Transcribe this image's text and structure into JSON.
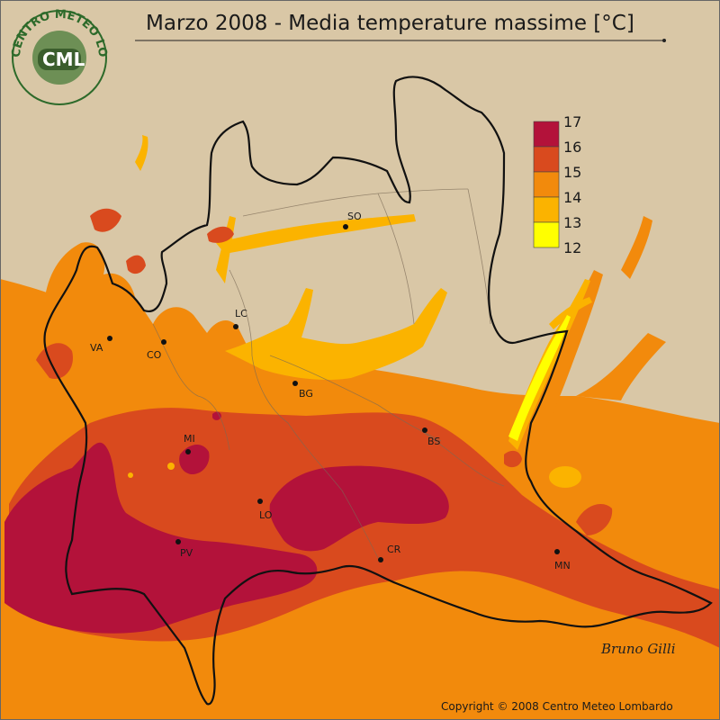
{
  "title": "Marzo 2008 - Media temperature massime [°C]",
  "logo": {
    "ring_text": "CENTRO METEO LOMBARDO",
    "short": "CML"
  },
  "legend": [
    {
      "label": "17",
      "color": "#b3123a"
    },
    {
      "label": "16",
      "color": "#d94a1e"
    },
    {
      "label": "15",
      "color": "#f28a0c"
    },
    {
      "label": "14",
      "color": "#fbb300"
    },
    {
      "label": "13",
      "color": "#ffff00"
    },
    {
      "label": "12",
      "color": ""
    }
  ],
  "cities": [
    {
      "id": "so",
      "label": "SO"
    },
    {
      "id": "lc",
      "label": "LC"
    },
    {
      "id": "va",
      "label": "VA"
    },
    {
      "id": "co",
      "label": "CO"
    },
    {
      "id": "bg",
      "label": "BG"
    },
    {
      "id": "mi",
      "label": "MI"
    },
    {
      "id": "bs",
      "label": "BS"
    },
    {
      "id": "lo",
      "label": "LO"
    },
    {
      "id": "pv",
      "label": "PV"
    },
    {
      "id": "cr",
      "label": "CR"
    },
    {
      "id": "mn",
      "label": "MN"
    }
  ],
  "signature": "Bruno Gilli",
  "copyright": "Copyright © 2008 Centro Meteo Lombardo",
  "colors": {
    "background": "#d9c7a6",
    "t17": "#b3123a",
    "t16": "#d94a1e",
    "t15": "#f28a0c",
    "t14": "#fbb300",
    "t13": "#ffff00",
    "border": "#111111"
  }
}
